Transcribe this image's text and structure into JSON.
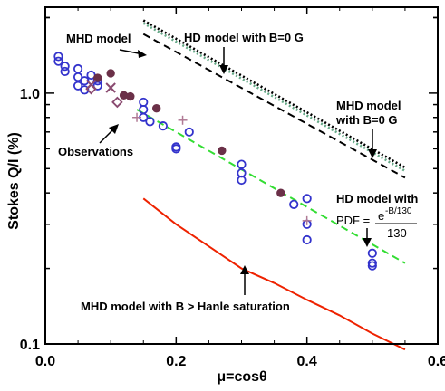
{
  "chart_data": {
    "type": "scatter",
    "xlabel": "μ=cosθ",
    "ylabel": "Stokes Q/I (%)",
    "xlim": [
      0,
      0.6
    ],
    "ylim": [
      0.1,
      2.2
    ],
    "yscale": "log",
    "x_ticks": [
      "0.0",
      "0.2",
      "0.4",
      "0.6"
    ],
    "y_ticks": [
      "0.1",
      "1.0"
    ],
    "series": [
      {
        "marker": "open-circle",
        "color": "#3333cc",
        "points": [
          [
            0.02,
            1.4
          ],
          [
            0.02,
            1.34
          ],
          [
            0.03,
            1.28
          ],
          [
            0.03,
            1.22
          ],
          [
            0.05,
            1.25
          ],
          [
            0.05,
            1.16
          ],
          [
            0.06,
            1.12
          ],
          [
            0.05,
            1.07
          ],
          [
            0.06,
            1.03
          ],
          [
            0.07,
            1.18
          ],
          [
            0.08,
            1.12
          ],
          [
            0.08,
            1.07
          ],
          [
            0.15,
            0.92
          ],
          [
            0.15,
            0.86
          ],
          [
            0.15,
            0.8
          ],
          [
            0.16,
            0.77
          ],
          [
            0.18,
            0.74
          ],
          [
            0.2,
            0.61
          ],
          [
            0.2,
            0.6
          ],
          [
            0.22,
            0.7
          ],
          [
            0.3,
            0.52
          ],
          [
            0.3,
            0.48
          ],
          [
            0.3,
            0.45
          ],
          [
            0.38,
            0.36
          ],
          [
            0.4,
            0.38
          ],
          [
            0.4,
            0.3
          ],
          [
            0.4,
            0.26
          ],
          [
            0.5,
            0.23
          ],
          [
            0.5,
            0.21
          ],
          [
            0.5,
            0.205
          ]
        ]
      },
      {
        "marker": "filled-circle",
        "color": "#6b3048",
        "points": [
          [
            0.08,
            1.15
          ],
          [
            0.1,
            1.2
          ],
          [
            0.12,
            0.98
          ],
          [
            0.13,
            0.97
          ],
          [
            0.17,
            0.87
          ],
          [
            0.27,
            0.59
          ],
          [
            0.36,
            0.4
          ]
        ]
      },
      {
        "marker": "cross",
        "color": "#8a4a70",
        "points": [
          [
            0.07,
            1.08
          ],
          [
            0.1,
            1.05
          ]
        ]
      },
      {
        "marker": "diamond",
        "color": "#8a4a70",
        "points": [
          [
            0.07,
            1.04
          ],
          [
            0.11,
            0.92
          ]
        ]
      },
      {
        "marker": "plus",
        "color": "#b07a95",
        "points": [
          [
            0.14,
            0.8
          ],
          [
            0.21,
            0.78
          ],
          [
            0.4,
            0.31
          ]
        ]
      }
    ],
    "lines": [
      {
        "style": "dashed",
        "color": "#000000",
        "x": [
          0.15,
          0.55
        ],
        "y": [
          1.72,
          0.46
        ]
      },
      {
        "style": "dotted",
        "color": "#000000",
        "x": [
          0.15,
          0.55
        ],
        "y": [
          1.95,
          0.505
        ]
      },
      {
        "style": "dotted",
        "color": "#66aa88",
        "x": [
          0.15,
          0.55
        ],
        "y": [
          1.9,
          0.49
        ]
      },
      {
        "style": "dashed",
        "color": "#33dd33",
        "x": [
          0.14,
          0.55
        ],
        "y": [
          0.86,
          0.21
        ]
      },
      {
        "style": "solid",
        "color": "#ee2200",
        "x": [
          0.15,
          0.2,
          0.25,
          0.3,
          0.35,
          0.4,
          0.45,
          0.5,
          0.55
        ],
        "y": [
          0.38,
          0.3,
          0.245,
          0.2,
          0.175,
          0.15,
          0.13,
          0.11,
          0.095
        ]
      }
    ],
    "annotations": {
      "mhd_model": "MHD model",
      "hd_model_b0": "HD model with B=0 G",
      "mhd_model_b0_line1": "MHD model",
      "mhd_model_b0_line2": "with B=0 G",
      "observations": "Observations",
      "hd_model_with": "HD model with",
      "pdf_label": "PDF =",
      "pdf_numerator": "e",
      "pdf_exponent": "-B/130",
      "pdf_denominator": "130",
      "mhd_hanle": "MHD model with B > Hanle saturation"
    }
  }
}
